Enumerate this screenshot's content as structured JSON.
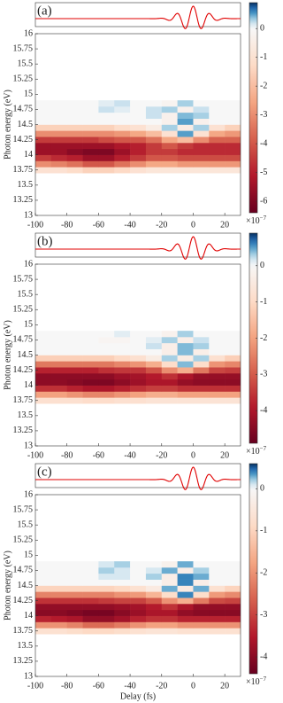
{
  "chart_data": [
    {
      "type": "heatmap",
      "panel_label": "(a)",
      "ylabel": "Photon energy (eV)",
      "x": [
        -95,
        -85,
        -75,
        -65,
        -55,
        -45,
        -35,
        -25,
        -15,
        -5,
        5,
        15,
        25
      ],
      "y": [
        13.75,
        13.85,
        13.95,
        14.05,
        14.15,
        14.25,
        14.35,
        14.45,
        14.55,
        14.65,
        14.75,
        14.85
      ],
      "z": [
        [
          -1,
          -1,
          -1.2,
          -1.5,
          -1.5,
          -1.3,
          -1,
          -0.8,
          -0.8,
          -0.8,
          -0.8,
          -0.8,
          -0.8
        ],
        [
          -3,
          -3.2,
          -3.5,
          -4,
          -4,
          -3.5,
          -3,
          -2.5,
          -2.5,
          -2.8,
          -2.8,
          -2.8,
          -2.8
        ],
        [
          -4.5,
          -4.8,
          -5,
          -5.5,
          -5.5,
          -5,
          -4.5,
          -4,
          -4,
          -4.2,
          -4.2,
          -4.2,
          -4.2
        ],
        [
          -5.5,
          -5.5,
          -5.8,
          -6,
          -6,
          -5.5,
          -5,
          -4.5,
          -4.5,
          -4.8,
          -4.8,
          -4.8,
          -4.8
        ],
        [
          -5.5,
          -5.5,
          -5.5,
          -5.5,
          -5.5,
          -5.2,
          -5,
          -4.5,
          -4,
          -4.5,
          -4.8,
          -4.8,
          -4.8
        ],
        [
          -4.5,
          -4.5,
          -4.5,
          -4.5,
          -4.2,
          -4,
          -4,
          -3.5,
          -2.5,
          -2,
          -3,
          -3.8,
          -3.8
        ],
        [
          -3,
          -3,
          -3,
          -3,
          -3,
          -2.8,
          -2.5,
          -2,
          -1,
          0.5,
          -1,
          -2.5,
          -2.8
        ],
        [
          -1.5,
          -1.5,
          -1.5,
          -1.5,
          -1.5,
          -1.2,
          -1,
          -0.5,
          0.3,
          -0.5,
          0.3,
          -1,
          -1.5
        ],
        [
          0,
          0,
          0,
          0,
          0,
          0,
          0,
          0,
          -0.3,
          0.5,
          -0.3,
          0,
          0
        ],
        [
          0,
          0,
          0,
          0,
          0,
          0,
          0,
          0.2,
          -0.3,
          0.4,
          0.3,
          0,
          0
        ],
        [
          0,
          0,
          0,
          0,
          0.2,
          0.1,
          0,
          0.2,
          0.3,
          -0.3,
          0.2,
          0,
          0
        ],
        [
          0,
          0,
          0,
          0,
          0.1,
          0.2,
          0,
          0,
          -0.2,
          0.3,
          0,
          0,
          0
        ]
      ],
      "xlim": [
        -100,
        30
      ],
      "xticks": [
        -100,
        -80,
        -60,
        -40,
        -20,
        0,
        20
      ],
      "ylim": [
        13,
        16
      ],
      "yticks": [
        13,
        13.25,
        13.5,
        13.75,
        14,
        14.25,
        14.5,
        14.75,
        15,
        15.25,
        15.5,
        15.75,
        16
      ],
      "clim": [
        -6.4,
        0.9
      ],
      "cticks": [
        0,
        -1,
        -2,
        -3,
        -4,
        -5,
        -6
      ],
      "colorbar_label": {
        "base": "×10",
        "exponent": "−7"
      },
      "pulse_color": "#e00000",
      "colormap": [
        "#67001f",
        "#b2182b",
        "#d6604d",
        "#f4a582",
        "#fddbc7",
        "#f7f7f7",
        "#d1e5f0",
        "#92c5de",
        "#4393c3",
        "#2166ac",
        "#053061"
      ]
    },
    {
      "type": "heatmap",
      "panel_label": "(b)",
      "ylabel": "Photon energy (eV)",
      "x": [
        -95,
        -85,
        -75,
        -65,
        -55,
        -45,
        -35,
        -25,
        -15,
        -5,
        5,
        15,
        25
      ],
      "y": [
        13.75,
        13.85,
        13.95,
        14.05,
        14.15,
        14.25,
        14.35,
        14.45,
        14.55,
        14.65,
        14.75,
        14.85
      ],
      "z": [
        [
          -0.8,
          -0.8,
          -0.8,
          -0.9,
          -0.9,
          -0.8,
          -0.8,
          -0.7,
          -0.7,
          -0.7,
          -0.7,
          -0.7,
          -0.7
        ],
        [
          -2,
          -2,
          -2.2,
          -2.4,
          -2.4,
          -2.2,
          -2,
          -1.8,
          -1.8,
          -2,
          -2,
          -2,
          -2
        ],
        [
          -3.6,
          -3.6,
          -3.8,
          -4,
          -4,
          -3.8,
          -3.6,
          -3.4,
          -3.4,
          -3.6,
          -3.6,
          -3.6,
          -3.6
        ],
        [
          -4.4,
          -4.4,
          -4.5,
          -4.6,
          -4.6,
          -4.4,
          -4.2,
          -4,
          -4,
          -4.3,
          -4.4,
          -4.4,
          -4.4
        ],
        [
          -4.4,
          -4.4,
          -4.4,
          -4.4,
          -4.4,
          -4.2,
          -4.1,
          -3.9,
          -3.6,
          -4,
          -4.3,
          -4.3,
          -4.3
        ],
        [
          -3.8,
          -3.8,
          -3.8,
          -3.8,
          -3.6,
          -3.5,
          -3.5,
          -3.1,
          -2.3,
          -1.8,
          -2.6,
          -3.3,
          -3.4
        ],
        [
          -2.6,
          -2.6,
          -2.6,
          -2.6,
          -2.6,
          -2.4,
          -2.2,
          -1.8,
          -0.9,
          0.4,
          -0.9,
          -2.2,
          -2.4
        ],
        [
          -1.2,
          -1.2,
          -1.2,
          -1.2,
          -1.2,
          -1,
          -0.8,
          -0.4,
          0.3,
          -0.4,
          0.3,
          -0.8,
          -1.2
        ],
        [
          0,
          0,
          0,
          0,
          0,
          0,
          0,
          0,
          -0.3,
          0.4,
          -0.3,
          0,
          0
        ],
        [
          0,
          0,
          0,
          0,
          0,
          0,
          0,
          0.2,
          -0.3,
          0.4,
          0.3,
          0,
          0
        ],
        [
          0,
          0,
          0,
          0,
          -0.1,
          -0.1,
          0,
          0.1,
          0.3,
          -0.3,
          0.2,
          0,
          0
        ],
        [
          0,
          0,
          0,
          0,
          0,
          0.1,
          0,
          0,
          -0.2,
          0.3,
          0,
          0,
          0
        ]
      ],
      "xlim": [
        -100,
        30
      ],
      "xticks": [
        -100,
        -80,
        -60,
        -40,
        -20,
        0,
        20
      ],
      "ylim": [
        13,
        16
      ],
      "yticks": [
        13,
        13.25,
        13.5,
        13.75,
        14,
        14.25,
        14.5,
        14.75,
        15,
        15.25,
        15.5,
        15.75,
        16
      ],
      "clim": [
        -4.9,
        0.9
      ],
      "cticks": [
        0,
        -1,
        -2,
        -3,
        -4
      ],
      "colorbar_label": {
        "base": "×10",
        "exponent": "−7"
      },
      "pulse_color": "#e00000",
      "colormap": [
        "#67001f",
        "#b2182b",
        "#d6604d",
        "#f4a582",
        "#fddbc7",
        "#f7f7f7",
        "#d1e5f0",
        "#92c5de",
        "#4393c3",
        "#2166ac",
        "#053061"
      ]
    },
    {
      "type": "heatmap",
      "panel_label": "(c)",
      "ylabel": "Photon energy (eV)",
      "xlabel": "Delay (fs)",
      "x": [
        -95,
        -85,
        -75,
        -65,
        -55,
        -45,
        -35,
        -25,
        -15,
        -5,
        5,
        15,
        25
      ],
      "y": [
        13.75,
        13.85,
        13.95,
        14.05,
        14.15,
        14.25,
        14.35,
        14.45,
        14.55,
        14.65,
        14.75,
        14.85
      ],
      "z": [
        [
          -0.7,
          -0.7,
          -0.8,
          -0.9,
          -0.9,
          -0.8,
          -0.7,
          -0.6,
          -0.6,
          -0.7,
          -0.7,
          -0.7,
          -0.7
        ],
        [
          -2,
          -2,
          -2.2,
          -2.5,
          -2.5,
          -2.3,
          -2,
          -1.8,
          -1.8,
          -2,
          -2,
          -2,
          -2
        ],
        [
          -3.4,
          -3.5,
          -3.6,
          -3.9,
          -3.9,
          -3.7,
          -3.4,
          -3.2,
          -3.2,
          -3.4,
          -3.4,
          -3.4,
          -3.4
        ],
        [
          -4,
          -4,
          -4.1,
          -4.2,
          -4.2,
          -4,
          -3.8,
          -3.6,
          -3.6,
          -3.9,
          -4,
          -4,
          -4
        ],
        [
          -3.9,
          -3.9,
          -3.9,
          -3.9,
          -3.9,
          -3.8,
          -3.7,
          -3.5,
          -3.2,
          -3.6,
          -3.9,
          -3.9,
          -3.9
        ],
        [
          -3.2,
          -3.2,
          -3.2,
          -3.2,
          -3.1,
          -3,
          -3,
          -2.7,
          -2,
          -1.6,
          -2.3,
          -2.9,
          -3
        ],
        [
          -2.2,
          -2.2,
          -2.2,
          -2.2,
          -2.2,
          -2,
          -1.9,
          -1.5,
          -0.8,
          0.4,
          -0.8,
          -1.9,
          -2.1
        ],
        [
          -1,
          -1,
          -1,
          -1,
          -1,
          -0.9,
          -0.7,
          -0.4,
          0.3,
          -0.4,
          0.3,
          -0.7,
          -1
        ],
        [
          0,
          0,
          0,
          0,
          0,
          0,
          0,
          0,
          -0.3,
          0.4,
          -0.3,
          0,
          0
        ],
        [
          0,
          0,
          0,
          0,
          0.1,
          0.1,
          0,
          0.2,
          -0.3,
          0.4,
          0.3,
          0,
          0
        ],
        [
          0,
          0,
          0,
          0,
          0.2,
          0.1,
          0,
          0.1,
          0.3,
          -0.3,
          0.2,
          0,
          0
        ],
        [
          0,
          0,
          0,
          0,
          0.1,
          0.2,
          0,
          0,
          -0.2,
          0.3,
          0,
          0,
          0
        ]
      ],
      "xlim": [
        -100,
        30
      ],
      "xticks": [
        -100,
        -80,
        -60,
        -40,
        -20,
        0,
        20
      ],
      "ylim": [
        13,
        16
      ],
      "yticks": [
        13,
        13.25,
        13.5,
        13.75,
        14,
        14.25,
        14.5,
        14.75,
        15,
        15.25,
        15.5,
        15.75,
        16
      ],
      "clim": [
        -4.4,
        0.6
      ],
      "cticks": [
        0,
        -1,
        -2,
        -3,
        -4
      ],
      "colorbar_label": {
        "base": "×10",
        "exponent": "−7"
      },
      "pulse_color": "#e00000",
      "colormap": [
        "#67001f",
        "#b2182b",
        "#d6604d",
        "#f4a582",
        "#fddbc7",
        "#f7f7f7",
        "#d1e5f0",
        "#92c5de",
        "#4393c3",
        "#2166ac",
        "#053061"
      ]
    }
  ]
}
